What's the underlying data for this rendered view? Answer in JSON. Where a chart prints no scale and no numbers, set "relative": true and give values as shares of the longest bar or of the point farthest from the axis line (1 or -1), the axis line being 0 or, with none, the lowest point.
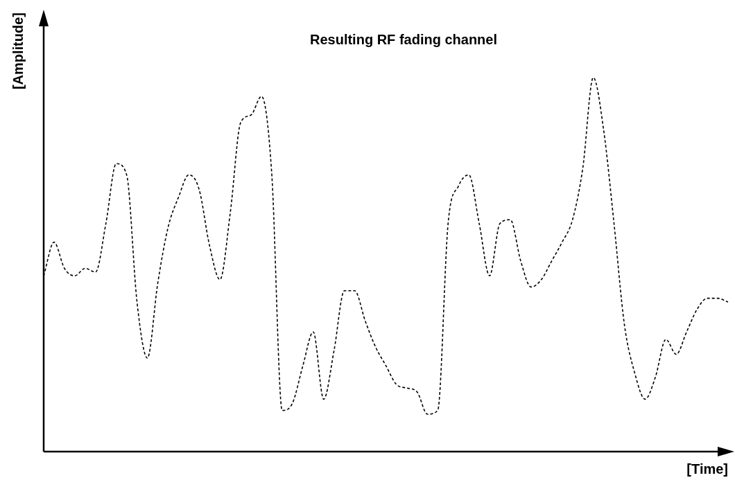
{
  "chart_data": {
    "type": "line",
    "title": "Resulting RF fading channel",
    "xlabel": "[Time]",
    "ylabel": "[Amplitude]",
    "relative": true,
    "line_style": "dashed",
    "categories": [
      null,
      null,
      null,
      null,
      null,
      null,
      null,
      null,
      null,
      null,
      null,
      null,
      null,
      null,
      null,
      null,
      null,
      null,
      null,
      null,
      null,
      null,
      null,
      null,
      null,
      null,
      null,
      null,
      null,
      null,
      null,
      null,
      null,
      null,
      null,
      null,
      null,
      null,
      null,
      null,
      null,
      null,
      null,
      null,
      null,
      null,
      null,
      null,
      null,
      null,
      null,
      null,
      null,
      null,
      null,
      null,
      null,
      null,
      null,
      null,
      null,
      null,
      null,
      null,
      null,
      null,
      null
    ],
    "series": [
      {
        "color": "#000000",
        "values": [
          0.47,
          0.56,
          0.49,
          0.47,
          0.49,
          0.48,
          0.61,
          0.77,
          0.74,
          0.4,
          0.25,
          0.45,
          0.6,
          0.68,
          0.74,
          0.7,
          0.55,
          0.46,
          0.64,
          0.88,
          0.9,
          0.95,
          0.74,
          0.11,
          0.13,
          0.23,
          0.32,
          0.14,
          0.27,
          0.43,
          0.43,
          0.35,
          0.28,
          0.23,
          0.18,
          0.17,
          0.16,
          0.1,
          0.11,
          0.61,
          0.71,
          0.74,
          0.61,
          0.47,
          0.61,
          0.62,
          0.51,
          0.44,
          0.46,
          0.51,
          0.56,
          0.62,
          0.76,
          1.0,
          0.86,
          0.61,
          0.34,
          0.21,
          0.14,
          0.2,
          0.3,
          0.26,
          0.32,
          0.38,
          0.41,
          0.41,
          0.4
        ]
      }
    ]
  }
}
